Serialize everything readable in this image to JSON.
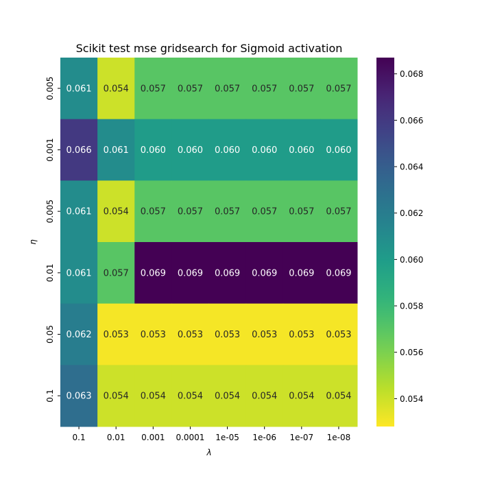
{
  "chart_data": {
    "type": "heatmap",
    "title": "Scikit test mse gridsearch for Sigmoid activation",
    "xlabel": "λ",
    "ylabel": "η",
    "x_categories": [
      "0.1",
      "0.01",
      "0.001",
      "0.0001",
      "1e-05",
      "1e-06",
      "1e-07",
      "1e-08"
    ],
    "y_categories": [
      "0.005",
      "0.001",
      "0.005",
      "0.01",
      "0.05",
      "0.1"
    ],
    "values": [
      [
        0.061,
        0.054,
        0.057,
        0.057,
        0.057,
        0.057,
        0.057,
        0.057
      ],
      [
        0.066,
        0.061,
        0.06,
        0.06,
        0.06,
        0.06,
        0.06,
        0.06
      ],
      [
        0.061,
        0.054,
        0.057,
        0.057,
        0.057,
        0.057,
        0.057,
        0.057
      ],
      [
        0.061,
        0.057,
        0.069,
        0.069,
        0.069,
        0.069,
        0.069,
        0.069
      ],
      [
        0.062,
        0.053,
        0.053,
        0.053,
        0.053,
        0.053,
        0.053,
        0.053
      ],
      [
        0.063,
        0.054,
        0.054,
        0.054,
        0.054,
        0.054,
        0.054,
        0.054
      ]
    ],
    "colormap": "viridis_r",
    "color_range": [
      0.0528,
      0.0687
    ],
    "colorbar_ticks": [
      "0.054",
      "0.056",
      "0.058",
      "0.060",
      "0.062",
      "0.064",
      "0.066",
      "0.068"
    ],
    "colorbar_tick_values": [
      0.054,
      0.056,
      0.058,
      0.06,
      0.062,
      0.064,
      0.066,
      0.068
    ]
  }
}
